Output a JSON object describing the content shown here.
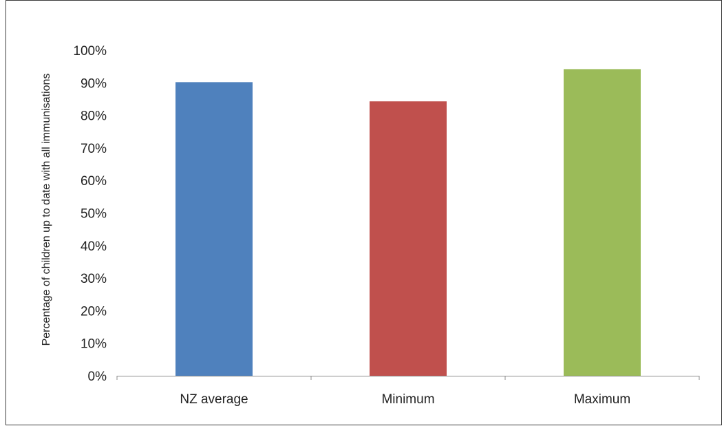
{
  "chart_data": {
    "type": "bar",
    "title": "",
    "xlabel": "",
    "ylabel": "Percentage of children up to date with all immunisations",
    "categories": [
      "NZ average",
      "Minimum",
      "Maximum"
    ],
    "values": [
      90.2,
      84.3,
      94.2
    ],
    "bar_colors": [
      "#4f81bd",
      "#c0504d",
      "#9bbb59"
    ],
    "ylim": [
      0,
      100
    ],
    "y_ticks": [
      {
        "value": 0,
        "label": "0%"
      },
      {
        "value": 10,
        "label": "10%"
      },
      {
        "value": 20,
        "label": "20%"
      },
      {
        "value": 30,
        "label": "30%"
      },
      {
        "value": 40,
        "label": "40%"
      },
      {
        "value": 50,
        "label": "50%"
      },
      {
        "value": 60,
        "label": "60%"
      },
      {
        "value": 70,
        "label": "70%"
      },
      {
        "value": 80,
        "label": "80%"
      },
      {
        "value": 90,
        "label": "90%"
      },
      {
        "value": 100,
        "label": "100%"
      }
    ],
    "grid": false,
    "legend": "none"
  }
}
